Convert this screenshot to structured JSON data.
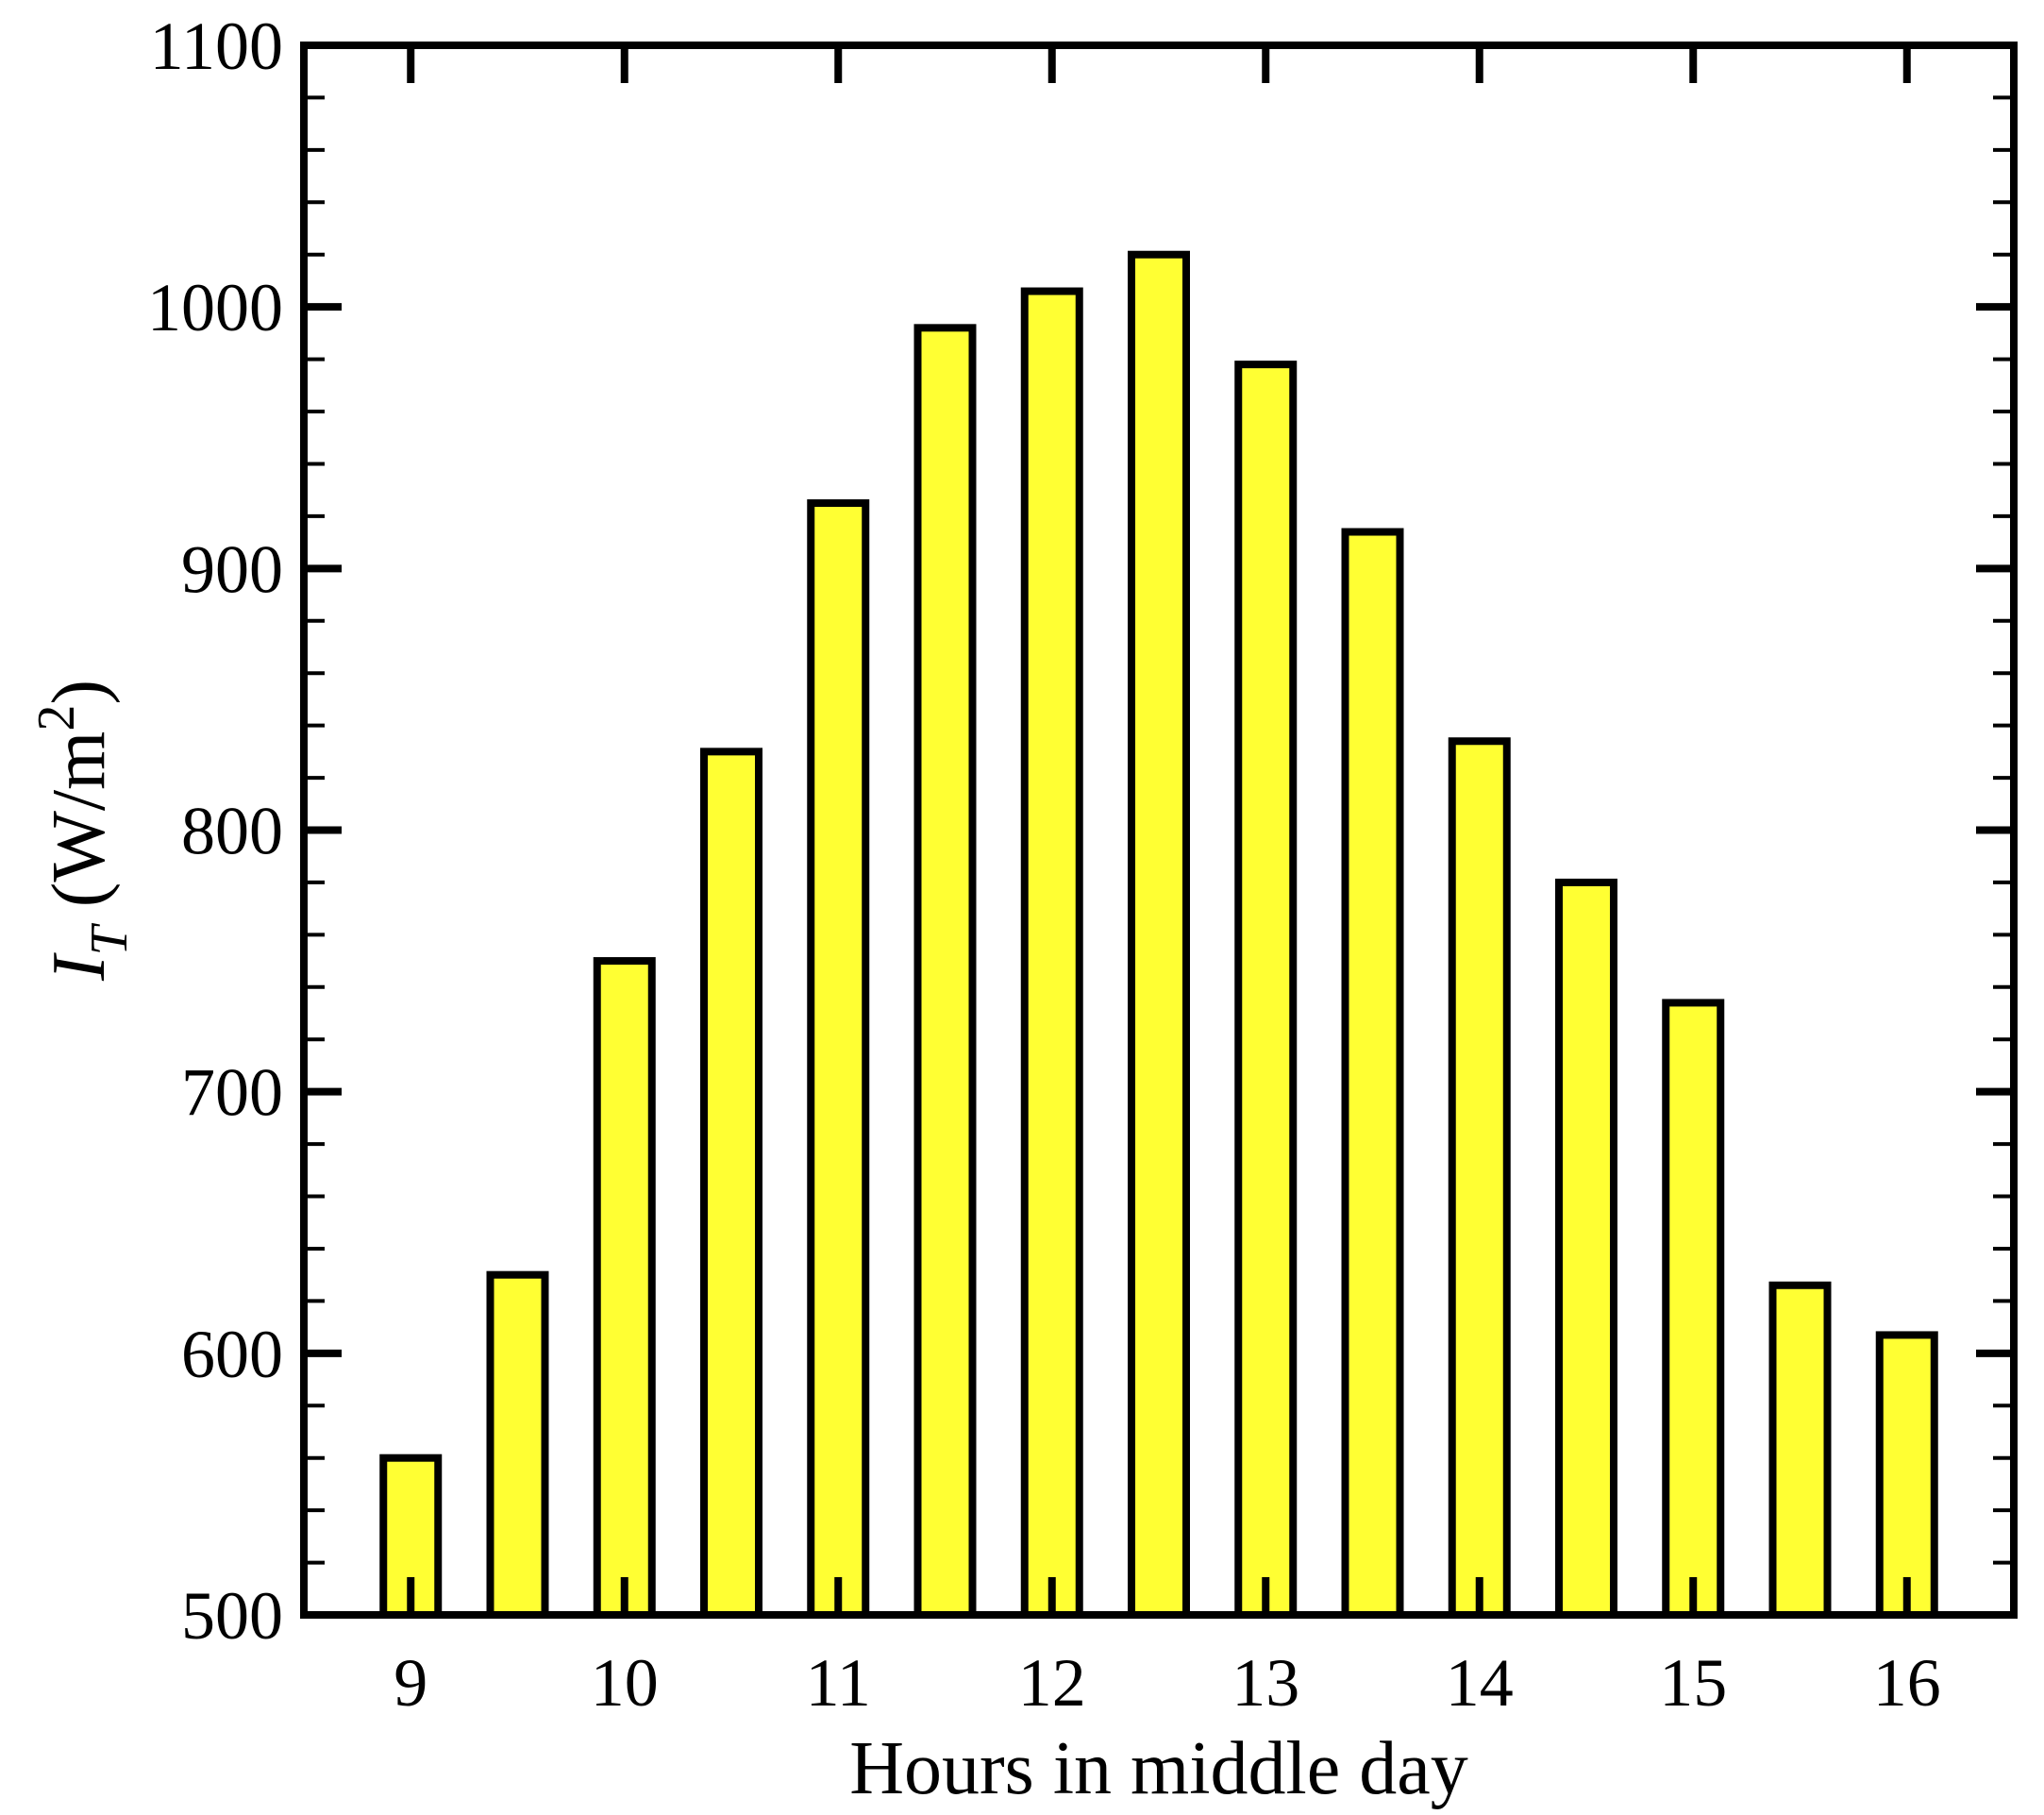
{
  "chart_data": {
    "type": "bar",
    "xlabel": "Hours in middle day",
    "ylabel": {
      "symbol": "I",
      "subscript": "T",
      "unit_open": " (W/m",
      "unit_power": "2",
      "unit_close": ")"
    },
    "x_ticks": [
      9,
      10,
      11,
      12,
      13,
      14,
      15,
      16
    ],
    "xlim": [
      8.5,
      16.5
    ],
    "ylim": [
      500,
      1100
    ],
    "y_ticks": [
      500,
      600,
      700,
      800,
      900,
      1000,
      1100
    ],
    "y_minor_step": 20,
    "x": [
      9,
      9.5,
      10,
      10.5,
      11,
      11.5,
      12,
      12.5,
      13,
      13.5,
      14,
      14.5,
      15,
      15.5,
      16
    ],
    "values": [
      560,
      630,
      750,
      830,
      925,
      992,
      1006,
      1020,
      978,
      914,
      834,
      780,
      734,
      626,
      607
    ],
    "bar_fill": "#ffff33",
    "bar_edge": "#000000",
    "grid": false
  }
}
